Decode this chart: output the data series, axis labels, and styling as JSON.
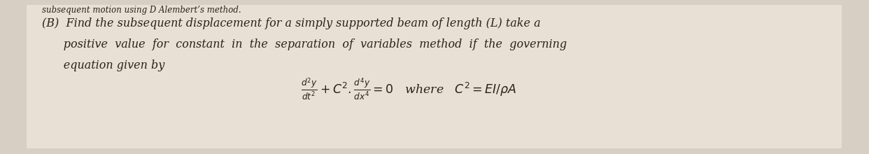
{
  "background_color": "#d8cfc4",
  "paper_color": "#e8e0d5",
  "top_text": "subsequent motion using D Alembert’s method.",
  "line1": "(B)  Find the subsequent displacement for a simply supported beam of length (L) take a",
  "line2": "      positive  value  for  constant  in  the  separation  of  variables  method  if  the  governing",
  "line3": "      equation given by",
  "equation": "$\\frac{d^2y}{dt^2} + C^2.\\frac{d^4y}{dx^4} = 0$   where   $C^2 = EI/\\rho A$",
  "font_size_top": 8.5,
  "font_size_body": 11.5,
  "font_size_eq": 12.5,
  "text_color": "#2a2218"
}
